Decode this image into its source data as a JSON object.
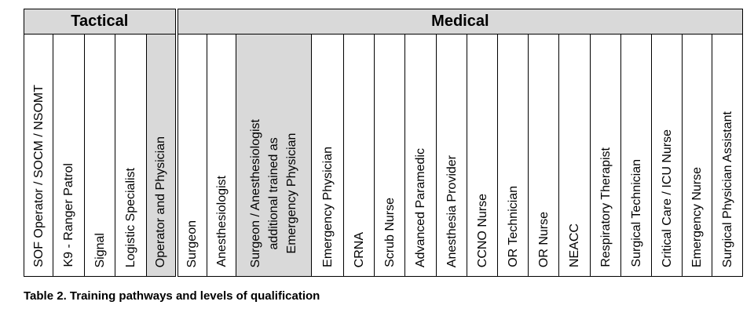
{
  "groups": {
    "tactical": "Tactical",
    "medical": "Medical"
  },
  "columns": {
    "c1": "SOF Operator / SOCM / NSOMT",
    "c2": "K9 - Ranger Patrol",
    "c3": "Signal",
    "c4": "Logistic Specialist",
    "c5": "Operator and Physician",
    "c6": "Surgeon",
    "c7": "Anesthesiologist",
    "c8_line1": "Surgeon / Anesthesiologist",
    "c8_line2": "additional trained as",
    "c8_line3": "Emergency Physician",
    "c9": "Emergency Physician",
    "c10": "CRNA",
    "c11": "Scrub Nurse",
    "c12": "Advanced Paramedic",
    "c13": "Anesthesia Provider",
    "c14": "CCNO Nurse",
    "c15": "OR Technician",
    "c16": "OR Nurse",
    "c17": "NEACC",
    "c18": "Respiratory Therapist",
    "c19": "Surgical Technician",
    "c20": "Critical Care / ICU Nurse",
    "c21": "Emergency Nurse",
    "c22": "Surgical Physician Assistant"
  },
  "caption": "Table 2. Training pathways and levels of qualification",
  "colors": {
    "shade": "#d9d9d9",
    "border": "#000000"
  }
}
